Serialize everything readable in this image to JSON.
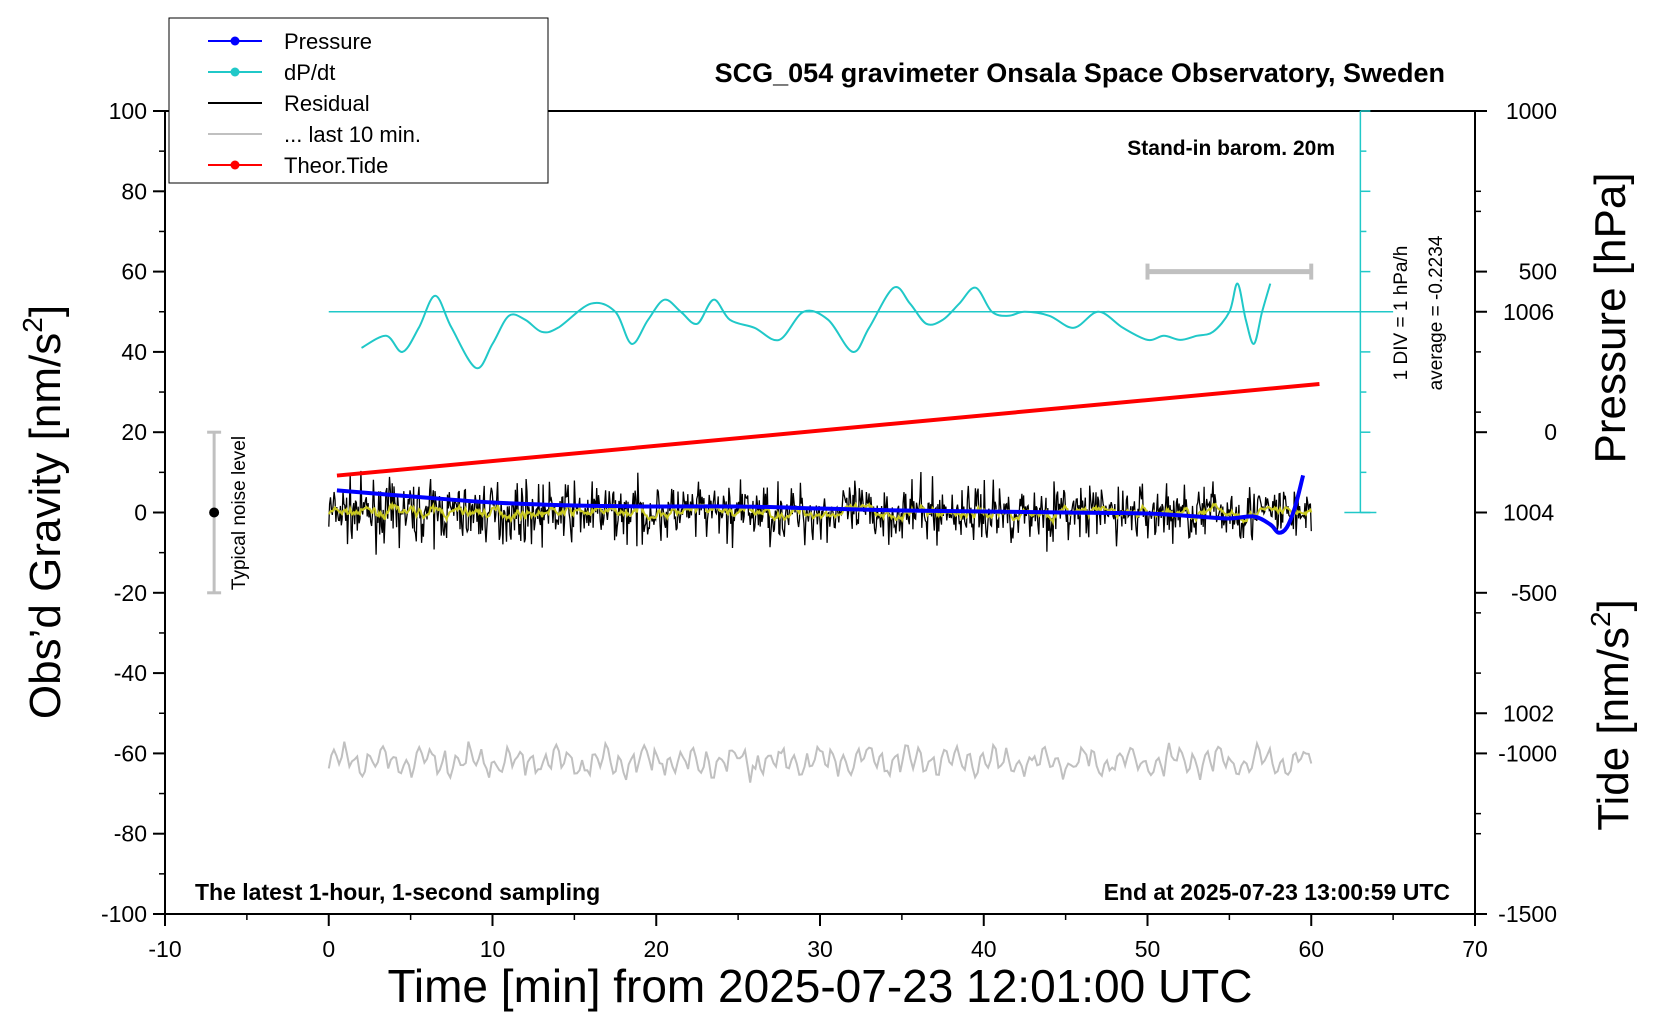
{
  "chart_data": {
    "type": "line",
    "title": "SCG_054 gravimeter Onsala Space Observatory, Sweden",
    "xlabel": "Time [min] from 2025-07-23 12:01:00 UTC",
    "ylabel_left_main": "Obs’d Gravity [nm/s",
    "ylabel_left_sup": "2",
    "ylabel_left_end": "]",
    "ylabel_right_pressure": "Pressure [hPa]",
    "ylabel_right_tide_main": "Tide [nm/s",
    "ylabel_right_tide_sup": "2",
    "ylabel_right_tide_end": "]",
    "xlim": [
      -10,
      70
    ],
    "ylim": [
      -100,
      100
    ],
    "pressure_ylim": [
      1000,
      1008
    ],
    "tide_ylim": [
      -1500,
      1000
    ],
    "grid": false,
    "legend_position": "top-left",
    "x_ticks": [
      "-10",
      "0",
      "10",
      "20",
      "30",
      "40",
      "50",
      "60",
      "70"
    ],
    "y_ticks": [
      "-100",
      "-80",
      "-60",
      "-40",
      "-20",
      "0",
      "20",
      "40",
      "60",
      "80",
      "100"
    ],
    "pressure_ticks": [
      "1002",
      "1004",
      "1006"
    ],
    "tide_ticks": [
      "-1500",
      "-1000",
      "-500",
      "0",
      "500",
      "1000"
    ],
    "legend": [
      {
        "label": "Pressure",
        "color": "#0000ff",
        "marker": true
      },
      {
        "label": "dP/dt",
        "color": "#20c8c8",
        "marker": true
      },
      {
        "label": "Residual",
        "color": "#000000",
        "marker": false
      },
      {
        "label": "... last 10 min.",
        "color": "#c0c0c0",
        "marker": false
      },
      {
        "label": "Theor.Tide",
        "color": "#ff0000",
        "marker": true
      }
    ],
    "annotations": {
      "barometer": "Stand-in barom. 20m",
      "latest": "The latest 1-hour, 1-second sampling",
      "end_time": "End at 2025-07-23 13:00:59 UTC",
      "div_scale": "1 DIV = 1 hPa/h",
      "average": "average = -0.2234",
      "noise": "Typical noise level"
    },
    "noise_bar": {
      "x": -7,
      "center": 0,
      "half_range": 20
    },
    "last10_bar": {
      "x_start": 50,
      "x_end": 60,
      "tide_value": 500
    },
    "dpdt_axis": {
      "x": 63,
      "y_top": 100,
      "y_bottom": 0,
      "zero_level": 50
    },
    "series": [
      {
        "name": "Pressure",
        "axis": "pressure",
        "color": "#0000ff",
        "x": [
          0.5,
          5,
          10,
          15,
          20,
          25,
          30,
          35,
          40,
          45,
          50,
          53,
          55,
          56.5,
          57.5,
          58,
          58.5,
          59,
          59.5
        ],
        "values": [
          1004.22,
          1004.16,
          1004.1,
          1004.07,
          1004.06,
          1004.06,
          1004.04,
          1004.02,
          1004.01,
          1004.0,
          1003.99,
          1003.96,
          1003.94,
          1003.96,
          1003.88,
          1003.8,
          1003.85,
          1004.05,
          1004.37
        ]
      },
      {
        "name": "dP/dt",
        "axis": "gravity",
        "color": "#20c8c8",
        "x": [
          2,
          3.5,
          4.5,
          5.5,
          6.5,
          7.5,
          9,
          10,
          11,
          12,
          13,
          14,
          16,
          17.5,
          18.5,
          19.5,
          20.5,
          21.5,
          22.5,
          23.5,
          24.5,
          26,
          27.5,
          29,
          30.5,
          32,
          33,
          34.5,
          35.5,
          36.5,
          37.5,
          38.5,
          39.5,
          40.5,
          41.5,
          42.5,
          44,
          45.5,
          47,
          48.5,
          50,
          51,
          52,
          53,
          54,
          55,
          55.5,
          56,
          56.5,
          57,
          57.5
        ],
        "values": [
          41,
          44,
          40,
          46,
          54,
          46,
          36,
          42,
          49,
          48,
          45,
          46,
          52,
          50,
          42,
          48,
          53,
          50,
          47,
          53,
          48,
          46,
          43,
          50,
          48,
          40,
          46,
          56,
          52,
          47,
          48,
          52,
          56,
          50,
          49,
          50,
          49,
          46,
          50,
          46,
          43,
          44,
          43,
          44,
          45,
          50,
          57,
          48,
          42,
          50,
          57
        ]
      },
      {
        "name": "Residual",
        "axis": "gravity",
        "color": "#000000",
        "x": [
          0,
          60
        ],
        "values": [
          0,
          0
        ],
        "amplitude": 4
      },
      {
        "name": "... last 10 min.",
        "axis": "gravity",
        "color": "#c0c0c0",
        "x": [
          0,
          60
        ],
        "values": [
          -62,
          -62
        ],
        "amplitude": 5
      },
      {
        "name": "Theor.Tide",
        "axis": "tide",
        "color": "#ff0000",
        "x": [
          0.5,
          60.5
        ],
        "values": [
          -135,
          150
        ]
      }
    ]
  }
}
